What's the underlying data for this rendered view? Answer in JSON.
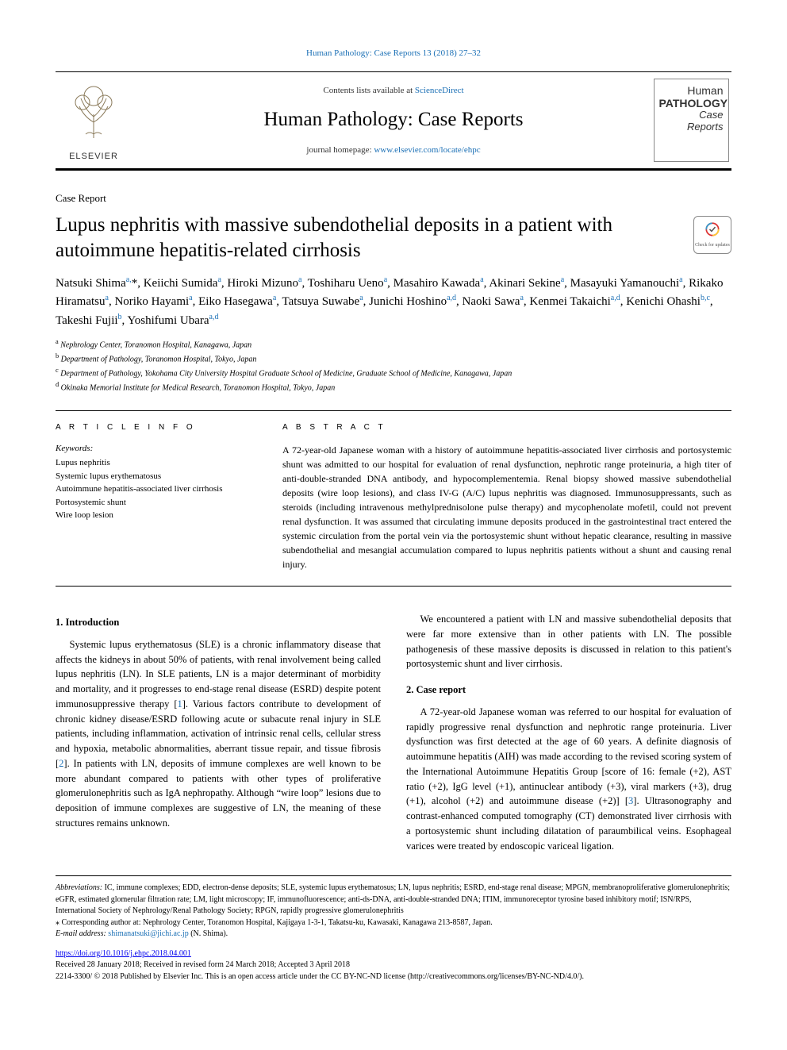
{
  "running_head": "Human Pathology: Case Reports 13 (2018) 27–32",
  "header": {
    "contents_prefix": "Contents lists available at ",
    "contents_link": "ScienceDirect",
    "journal_name": "Human Pathology: Case Reports",
    "homepage_prefix": "journal homepage: ",
    "homepage_link": "www.elsevier.com/locate/ehpc",
    "elsevier": "ELSEVIER",
    "cover_line1": "Human",
    "cover_line2": "PATHOLOGY",
    "cover_line3": "Case",
    "cover_line4": "Reports"
  },
  "article_type": "Case Report",
  "title": "Lupus nephritis with massive subendothelial deposits in a patient with autoimmune hepatitis-related cirrhosis",
  "crossmark_label": "Check for updates",
  "authors_html": "Natsuki Shima<sup>a,</sup>*, Keiichi Sumida<sup>a</sup>, Hiroki Mizuno<sup>a</sup>, Toshiharu Ueno<sup>a</sup>, Masahiro Kawada<sup>a</sup>, Akinari Sekine<sup>a</sup>, Masayuki Yamanouchi<sup>a</sup>, Rikako Hiramatsu<sup>a</sup>, Noriko Hayami<sup>a</sup>, Eiko Hasegawa<sup>a</sup>, Tatsuya Suwabe<sup>a</sup>, Junichi Hoshino<sup>a,d</sup>, Naoki Sawa<sup>a</sup>, Kenmei Takaichi<sup>a,d</sup>, Kenichi Ohashi<sup>b,c</sup>, Takeshi Fujii<sup>b</sup>, Yoshifumi Ubara<sup>a,d</sup>",
  "affiliations": [
    {
      "sup": "a",
      "text": "Nephrology Center, Toranomon Hospital, Kanagawa, Japan"
    },
    {
      "sup": "b",
      "text": "Department of Pathology, Toranomon Hospital, Tokyo, Japan"
    },
    {
      "sup": "c",
      "text": "Department of Pathology, Yokohama City University Hospital Graduate School of Medicine, Graduate School of Medicine, Kanagawa, Japan"
    },
    {
      "sup": "d",
      "text": "Okinaka Memorial Institute for Medical Research, Toranomon Hospital, Tokyo, Japan"
    }
  ],
  "meta": {
    "article_info": "A R T I C L E  I N F O",
    "abstract_label": "A B S T R A C T",
    "keywords_label": "Keywords:",
    "keywords": [
      "Lupus nephritis",
      "Systemic lupus erythematosus",
      "Autoimmune hepatitis-associated liver cirrhosis",
      "Portosystemic shunt",
      "Wire loop lesion"
    ],
    "abstract": "A 72-year-old Japanese woman with a history of autoimmune hepatitis-associated liver cirrhosis and portosystemic shunt was admitted to our hospital for evaluation of renal dysfunction, nephrotic range proteinuria, a high titer of anti-double-stranded DNA antibody, and hypocomplementemia. Renal biopsy showed massive subendothelial deposits (wire loop lesions), and class IV-G (A/C) lupus nephritis was diagnosed. Immunosuppressants, such as steroids (including intravenous methylprednisolone pulse therapy) and mycophenolate mofetil, could not prevent renal dysfunction. It was assumed that circulating immune deposits produced in the gastrointestinal tract entered the systemic circulation from the portal vein via the portosystemic shunt without hepatic clearance, resulting in massive subendothelial and mesangial accumulation compared to lupus nephritis patients without a shunt and causing renal injury."
  },
  "sections": {
    "intro_heading": "1. Introduction",
    "intro_p1": "Systemic lupus erythematosus (SLE) is a chronic inflammatory disease that affects the kidneys in about 50% of patients, with renal involvement being called lupus nephritis (LN). In SLE patients, LN is a major determinant of morbidity and mortality, and it progresses to end-stage renal disease (ESRD) despite potent immunosuppressive therapy [",
    "intro_ref1": "1",
    "intro_p1b": "]. Various factors contribute to development of chronic kidney disease/ESRD following acute or subacute renal injury in SLE patients, including inflammation, activation of intrinsic renal cells, cellular stress and hypoxia, metabolic abnormalities, aberrant tissue repair, and tissue fibrosis [",
    "intro_ref2": "2",
    "intro_p1c": "]. In patients with LN, deposits of immune complexes are well known to be more abundant compared to patients with other types of proliferative glomerulonephritis such as IgA nephropathy. Although “wire loop” lesions due to deposition of immune complexes are suggestive of LN, the meaning of these structures remains unknown.",
    "intro_p2": "We encountered a patient with LN and massive subendothelial",
    "intro_p3": "deposits that were far more extensive than in other patients with LN. The possible pathogenesis of these massive deposits is discussed in relation to this patient's portosystemic shunt and liver cirrhosis.",
    "case_heading": "2. Case report",
    "case_p1a": "A 72-year-old Japanese woman was referred to our hospital for evaluation of rapidly progressive renal dysfunction and nephrotic range proteinuria. Liver dysfunction was first detected at the age of 60 years. A definite diagnosis of autoimmune hepatitis (AIH) was made according to the revised scoring system of the International Autoimmune Hepatitis Group [score of 16: female (+2), AST ratio (+2), IgG level (+1), antinuclear antibody (+3), viral markers (+3), drug (+1), alcohol (+2) and autoimmune disease (+2)] [",
    "case_ref3": "3",
    "case_p1b": "]. Ultrasonography and contrast-enhanced computed tomography (CT) demonstrated liver cirrhosis with a portosystemic shunt including dilatation of paraumbilical veins. Esophageal varices were treated by endoscopic variceal ligation."
  },
  "footer": {
    "abbrev_label": "Abbreviations:",
    "abbrev_text": " IC, immune complexes; EDD, electron-dense deposits; SLE, systemic lupus erythematosus; LN, lupus nephritis; ESRD, end-stage renal disease; MPGN, membranoproliferative glomerulonephritis; eGFR, estimated glomerular filtration rate; LM, light microscopy; IF, immunofluorescence; anti-ds-DNA, anti-double-stranded DNA; ITIM, immunoreceptor tyrosine based inhibitory motif; ISN/RPS, International Society of Nephrology/Renal Pathology Society; RPGN, rapidly progressive glomerulonephritis",
    "corr_label": "⁎ Corresponding author at: Nephrology Center, Toranomon Hospital, Kajigaya 1-3-1, Takatsu-ku, Kawasaki, Kanagawa 213-8587, Japan.",
    "email_label": "E-mail address: ",
    "email_link": "shimanatsuki@jichi.ac.jp",
    "email_suffix": " (N. Shima).",
    "doi": "https://doi.org/10.1016/j.ehpc.2018.04.001",
    "received": "Received 28 January 2018; Received in revised form 24 March 2018; Accepted 3 April 2018",
    "copyright": "2214-3300/ © 2018 Published by Elsevier Inc. This is an open access article under the CC BY-NC-ND license (http://creativecommons.org/licenses/BY-NC-ND/4.0/)."
  },
  "colors": {
    "link": "#1a6fb5",
    "text": "#000000",
    "rule": "#000000"
  }
}
